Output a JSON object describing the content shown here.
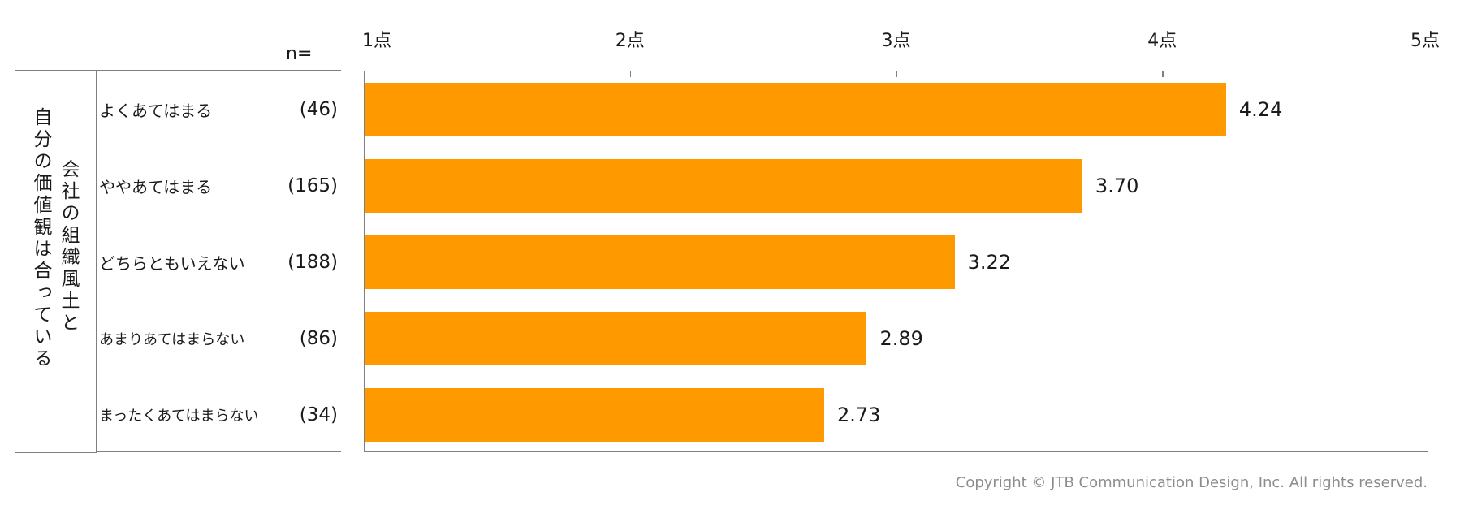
{
  "colors": {
    "bar": "#FF9900",
    "axis": "#7f7f7f",
    "text": "#1a1a1a"
  },
  "group_label": {
    "column1": "自分の価値観は合っている",
    "column2": "会社の組織風土と"
  },
  "n_header": "n=",
  "copyright": "Copyright © JTB Communication Design, Inc. All rights reserved.",
  "chart_data": {
    "type": "bar",
    "orientation": "horizontal",
    "categories": [
      "よくあてはまる",
      "ややあてはまる",
      "どちらともいえない",
      "あまりあてはまらない",
      "まったくあてはまらない"
    ],
    "n": [
      "(46)",
      "(165)",
      "(188)",
      "(86)",
      "(34)"
    ],
    "values": [
      4.24,
      3.7,
      3.22,
      2.89,
      2.73
    ],
    "value_labels": [
      "4.24",
      "3.70",
      "3.22",
      "2.89",
      "2.73"
    ],
    "xlim": [
      1,
      5
    ],
    "ticks": [
      1,
      2,
      3,
      4,
      5
    ],
    "tick_labels": [
      "1点",
      "2点",
      "3点",
      "4点",
      "5点"
    ],
    "grid": false
  }
}
